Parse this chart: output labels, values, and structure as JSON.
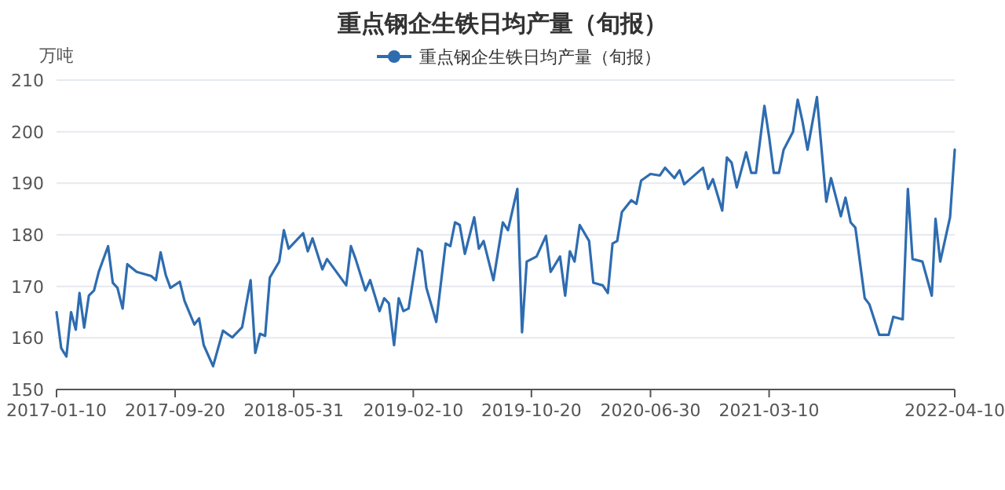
{
  "chart_data": {
    "type": "line",
    "title": "重点钢企生铁日均产量（旬报）",
    "ylabel": "万吨",
    "xlim": [
      "2017-01-10",
      "2022-04-10"
    ],
    "xticks": [
      "2017-01-10",
      "2017-09-20",
      "2018-05-31",
      "2019-02-10",
      "2019-10-20",
      "2020-06-30",
      "2021-03-10",
      "2022-04-10"
    ],
    "ylim": [
      150,
      210
    ],
    "yticks": [
      150,
      160,
      170,
      180,
      190,
      200,
      210
    ],
    "grid": "y",
    "legend": "top",
    "series": [
      {
        "name": "重点钢企生铁日均产量（旬报）",
        "color": "#2e6cb0",
        "x": [
          "2017-01-10",
          "2017-01-20",
          "2017-01-31",
          "2017-02-10",
          "2017-02-20",
          "2017-02-28",
          "2017-03-10",
          "2017-03-20",
          "2017-03-31",
          "2017-04-10",
          "2017-04-30",
          "2017-05-10",
          "2017-05-20",
          "2017-05-31",
          "2017-06-10",
          "2017-06-30",
          "2017-07-31",
          "2017-08-10",
          "2017-08-20",
          "2017-08-31",
          "2017-09-10",
          "2017-09-30",
          "2017-10-10",
          "2017-10-31",
          "2017-11-10",
          "2017-11-20",
          "2017-12-10",
          "2017-12-31",
          "2018-01-20",
          "2018-02-10",
          "2018-02-28",
          "2018-03-10",
          "2018-03-20",
          "2018-03-31",
          "2018-04-10",
          "2018-04-30",
          "2018-05-10",
          "2018-05-20",
          "2018-06-20",
          "2018-06-30",
          "2018-07-10",
          "2018-07-31",
          "2018-08-10",
          "2018-09-20",
          "2018-09-30",
          "2018-10-10",
          "2018-10-31",
          "2018-11-10",
          "2018-11-30",
          "2018-12-10",
          "2018-12-20",
          "2018-12-31",
          "2019-01-10",
          "2019-01-20",
          "2019-01-31",
          "2019-02-20",
          "2019-02-28",
          "2019-03-10",
          "2019-03-31",
          "2019-04-20",
          "2019-04-30",
          "2019-05-10",
          "2019-05-20",
          "2019-05-31",
          "2019-06-20",
          "2019-06-30",
          "2019-07-10",
          "2019-07-31",
          "2019-08-20",
          "2019-08-31",
          "2019-09-20",
          "2019-09-30",
          "2019-10-10",
          "2019-10-31",
          "2019-11-20",
          "2019-11-30",
          "2019-12-20",
          "2019-12-31",
          "2020-01-10",
          "2020-01-20",
          "2020-01-31",
          "2020-02-20",
          "2020-02-29",
          "2020-03-20",
          "2020-03-31",
          "2020-04-10",
          "2020-04-20",
          "2020-04-30",
          "2020-05-20",
          "2020-05-31",
          "2020-06-10",
          "2020-06-30",
          "2020-07-20",
          "2020-07-31",
          "2020-08-20",
          "2020-08-31",
          "2020-09-10",
          "2020-10-20",
          "2020-10-31",
          "2020-11-10",
          "2020-11-30",
          "2020-12-10",
          "2020-12-20",
          "2020-12-31",
          "2021-01-20",
          "2021-01-31",
          "2021-02-10",
          "2021-02-28",
          "2021-03-10",
          "2021-03-20",
          "2021-03-31",
          "2021-04-10",
          "2021-04-30",
          "2021-05-10",
          "2021-05-20",
          "2021-05-31",
          "2021-06-20",
          "2021-07-10",
          "2021-07-20",
          "2021-08-10",
          "2021-08-20",
          "2021-08-31",
          "2021-09-10",
          "2021-09-30",
          "2021-10-10",
          "2021-10-31",
          "2021-11-20",
          "2021-11-30",
          "2021-12-20",
          "2021-12-31",
          "2022-01-10",
          "2022-01-31",
          "2022-02-20",
          "2022-02-28",
          "2022-03-10",
          "2022-03-31",
          "2022-04-10"
        ],
        "values": [
          165,
          158,
          156.4,
          165,
          161.6,
          168.7,
          162,
          168.2,
          169.2,
          172.8,
          177.8,
          170.7,
          169.7,
          165.7,
          174.3,
          172.8,
          172,
          171.2,
          176.6,
          172.2,
          169.7,
          170.9,
          167.2,
          162.6,
          163.8,
          158.6,
          154.5,
          161.4,
          160.1,
          162.1,
          171.2,
          157.1,
          160.8,
          160.4,
          171.7,
          174.8,
          180.9,
          177.3,
          180.3,
          176.8,
          179.3,
          173.3,
          175.3,
          170.2,
          177.8,
          175.3,
          169.2,
          171.2,
          165.2,
          167.7,
          166.7,
          158.6,
          167.7,
          165.2,
          165.7,
          177.3,
          176.8,
          169.7,
          163.1,
          178.3,
          177.8,
          182.4,
          181.9,
          176.3,
          183.4,
          177.3,
          178.8,
          171.2,
          182.4,
          180.9,
          188.9,
          161.1,
          174.8,
          175.8,
          179.8,
          172.8,
          175.8,
          168.2,
          176.8,
          174.8,
          181.9,
          178.8,
          170.7,
          170.2,
          168.7,
          178.3,
          178.8,
          184.4,
          186.7,
          186,
          190.5,
          191.8,
          191.5,
          193,
          191,
          192.5,
          189.8,
          193,
          188.9,
          190.8,
          184.7,
          195,
          194,
          189.2,
          196,
          192,
          192,
          205,
          199,
          192,
          192,
          196.5,
          200,
          206.2,
          202.1,
          196.5,
          206.7,
          186.4,
          191,
          183.6,
          187.2,
          182.4,
          181.4,
          167.7,
          166.5,
          160.6,
          160.6,
          164.1,
          163.6,
          188.9,
          175.3,
          174.8,
          168.2,
          183.1,
          174.8,
          183.4,
          196.5
        ]
      }
    ]
  }
}
